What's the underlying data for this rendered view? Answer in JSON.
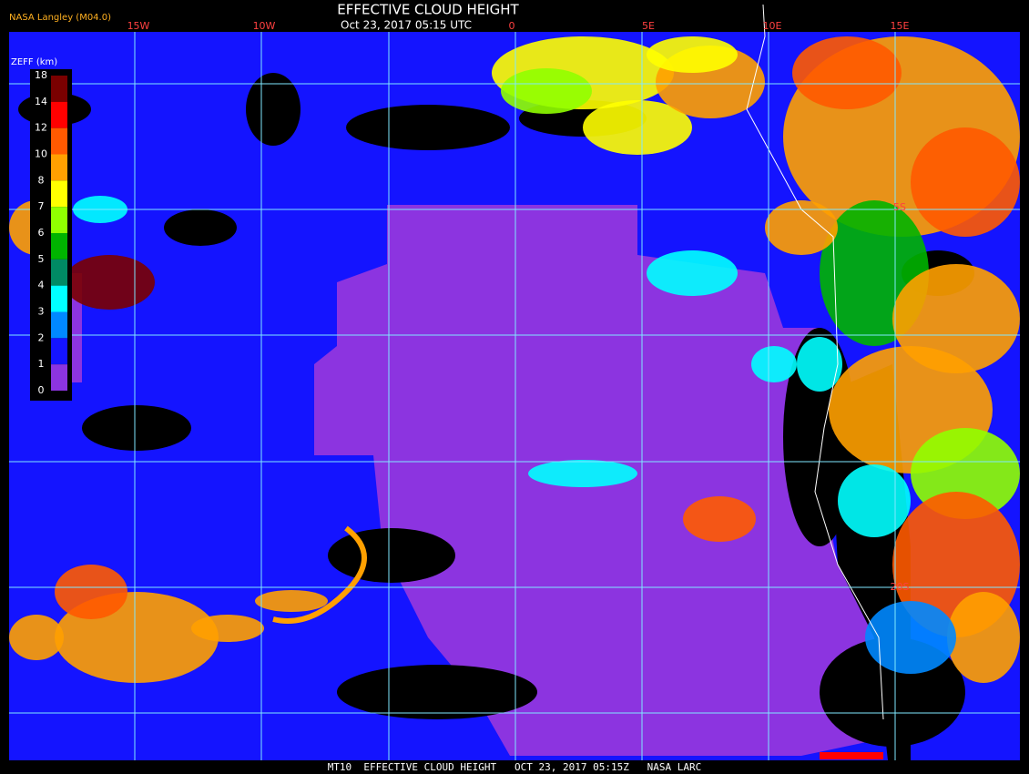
{
  "header": {
    "title": "EFFECTIVE CLOUD HEIGHT",
    "subtitle": "Oct 23, 2017 05:15 UTC",
    "source": "NASA Langley (M04.0)"
  },
  "legend": {
    "title": "ZEFF (km)",
    "labels": [
      "18",
      "14",
      "12",
      "10",
      "8",
      "7",
      "6",
      "5",
      "4",
      "3",
      "2",
      "1",
      "0"
    ],
    "colors": [
      "#7a0000",
      "#ff0000",
      "#ff5a00",
      "#ffa000",
      "#ffff00",
      "#90ff00",
      "#00b400",
      "#008a64",
      "#00ffff",
      "#0088ff",
      "#1414ff",
      "#8c34e0"
    ]
  },
  "grid_labels": {
    "longitudes": [
      "15W",
      "10W",
      "0",
      "5E",
      "10E",
      "15E"
    ],
    "latitudes": [
      "5S",
      "20S"
    ]
  },
  "footer": "MT10  EFFECTIVE CLOUD HEIGHT   OCT 23, 2017 05:15Z   NASA LARC"
}
